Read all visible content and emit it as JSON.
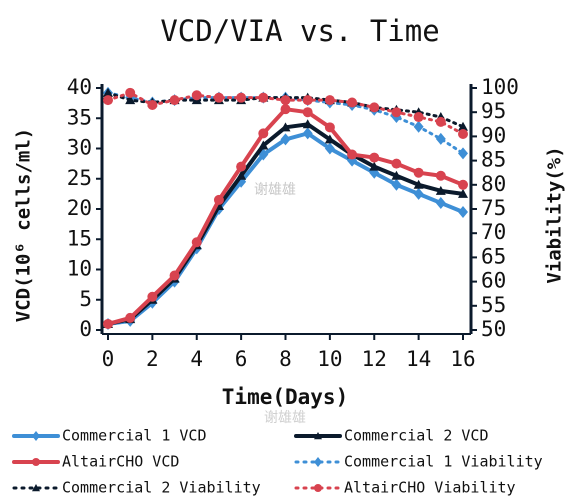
{
  "chart_data": {
    "type": "line",
    "title": "VCD/VIA vs. Time",
    "xlabel": "Time(Days)",
    "ylabel": "VCD(10⁶ cells/ml)",
    "y2label": "Viability(%)",
    "watermarks": [
      "谢雄雄",
      "谢雄雄"
    ],
    "x": [
      0,
      1,
      2,
      3,
      4,
      5,
      6,
      7,
      8,
      9,
      10,
      11,
      12,
      13,
      14,
      15,
      16
    ],
    "xlim": [
      0,
      16
    ],
    "xticks": [
      0,
      2,
      4,
      6,
      8,
      10,
      12,
      14,
      16
    ],
    "ylim": [
      0,
      40
    ],
    "yticks": [
      0,
      5,
      10,
      15,
      20,
      25,
      30,
      35,
      40
    ],
    "y2lim": [
      50,
      100
    ],
    "y2ticks": [
      50,
      55,
      60,
      65,
      70,
      75,
      80,
      85,
      90,
      95,
      100
    ],
    "series": [
      {
        "name": "Commercial 1 VCD",
        "color": "#3e8fd6",
        "marker": "diamond",
        "style": "solid",
        "values": [
          1,
          1.5,
          4.5,
          8,
          13.5,
          20,
          24.5,
          29,
          31.5,
          32.5,
          30,
          28,
          26,
          24,
          22.5,
          21,
          19.5
        ]
      },
      {
        "name": "Commercial 2 VCD",
        "color": "#0b1a2c",
        "marker": "triangle",
        "style": "solid",
        "values": [
          1,
          1.8,
          5,
          8.5,
          14,
          20.5,
          25.5,
          30.5,
          33.5,
          34,
          31.5,
          29,
          27,
          25.5,
          24,
          23,
          22.5
        ]
      },
      {
        "name": "AltairCHO VCD",
        "color": "#d8434f",
        "marker": "circle",
        "style": "solid",
        "values": [
          1,
          2,
          5.5,
          9,
          14.5,
          21.5,
          27,
          32.5,
          36.5,
          36,
          33.5,
          29,
          28.5,
          27.5,
          26,
          25.5,
          24
        ]
      },
      {
        "name": "Commercial 1 Viability",
        "color": "#3e8fd6",
        "marker": "diamond",
        "style": "dotted",
        "axis": "y2",
        "values": [
          99,
          98,
          97,
          97.5,
          98,
          98,
          98,
          98,
          98,
          97.5,
          97,
          96.5,
          95.5,
          94,
          92,
          89.5,
          86.5
        ]
      },
      {
        "name": "Commercial 2 Viability",
        "color": "#0b1a2c",
        "marker": "triangle",
        "style": "dotted",
        "axis": "y2",
        "values": [
          99,
          97.5,
          97,
          97.5,
          97.5,
          97.5,
          97.5,
          98,
          98,
          98,
          97.5,
          97,
          96,
          95.5,
          95,
          94,
          92
        ]
      },
      {
        "name": "AltairCHO Viability",
        "color": "#d8434f",
        "marker": "circle",
        "style": "dotted",
        "axis": "y2",
        "values": [
          97.5,
          99,
          96.5,
          97.5,
          98.5,
          98,
          98,
          98,
          97.5,
          97.5,
          97.5,
          97,
          96,
          95,
          94,
          93,
          90.5
        ]
      }
    ]
  }
}
